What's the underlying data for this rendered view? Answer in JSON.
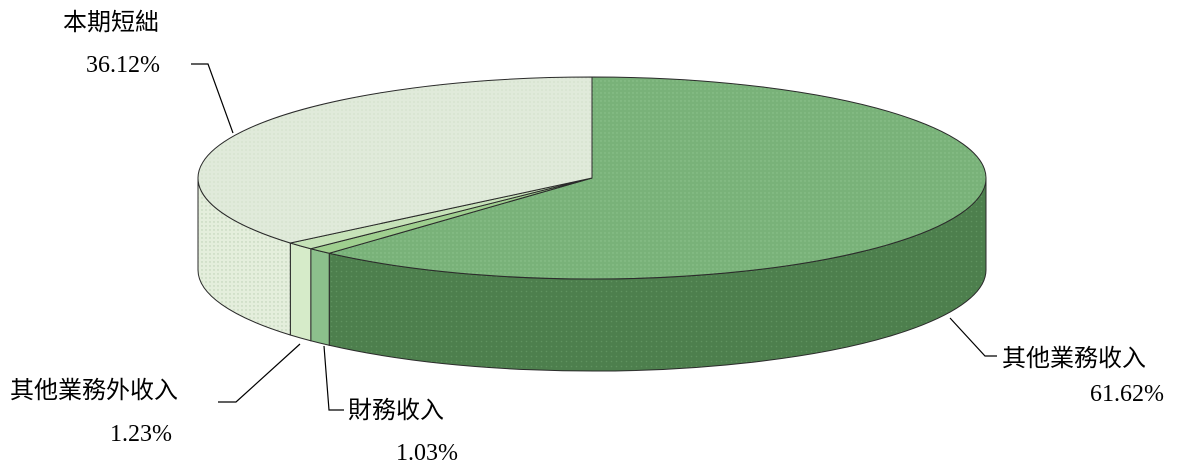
{
  "chart_data": {
    "type": "pie",
    "style": "3d",
    "slices": [
      {
        "label": "其他業務收入",
        "value": 61.62,
        "value_text": "61.62%",
        "color_top": "#79b279",
        "color_side": "#4a7a4a"
      },
      {
        "label": "財務收入",
        "value": 1.03,
        "value_text": "1.03%",
        "color_top": "#9fcf8f",
        "color_side": "#8cc08c"
      },
      {
        "label": "其他業務外收入",
        "value": 1.23,
        "value_text": "1.23%",
        "color_top": "#c6e2b8",
        "color_side": "#d6ebc9"
      },
      {
        "label": "本期短絀",
        "value": 36.12,
        "value_text": "36.12%",
        "color_top": "#dfe9d7",
        "color_side": "#e6efdd"
      }
    ]
  }
}
